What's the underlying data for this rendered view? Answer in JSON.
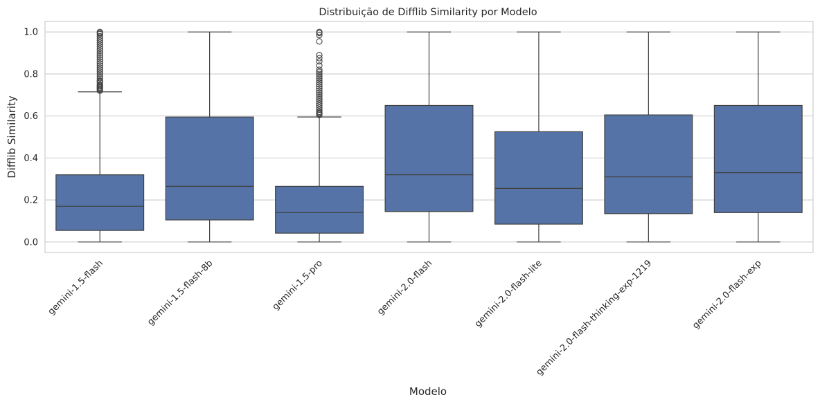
{
  "chart_data": {
    "type": "box",
    "title": "Distribuição de Difflib Similarity por Modelo",
    "xlabel": "Modelo",
    "ylabel": "Difflib Similarity",
    "ylim": [
      -0.05,
      1.05
    ],
    "yticks": [
      "0.0",
      "0.2",
      "0.4",
      "0.6",
      "0.8",
      "1.0"
    ],
    "grid": "horizontal",
    "colors": {
      "box": "#5573a6",
      "line": "#404040",
      "grid": "#cccccc",
      "spine": "#cccccc"
    },
    "categories": [
      "gemini-1.5-flash",
      "gemini-1.5-flash-8b",
      "gemini-1.5-pro",
      "gemini-2.0-flash",
      "gemini-2.0-flash-lite",
      "gemini-2.0-flash-thinking-exp-1219",
      "gemini-2.0-flash-exp"
    ],
    "boxes": [
      {
        "whisker_low": 0.0,
        "q1": 0.055,
        "median": 0.17,
        "q3": 0.32,
        "whisker_high": 0.715,
        "outliers": [
          0.72,
          0.725,
          0.73,
          0.735,
          0.74,
          0.745,
          0.75,
          0.76,
          0.765,
          0.77,
          0.78,
          0.79,
          0.8,
          0.81,
          0.82,
          0.83,
          0.84,
          0.85,
          0.86,
          0.87,
          0.88,
          0.89,
          0.9,
          0.91,
          0.92,
          0.93,
          0.94,
          0.95,
          0.96,
          0.97,
          0.98,
          0.99,
          0.995,
          1.0
        ]
      },
      {
        "whisker_low": 0.0,
        "q1": 0.105,
        "median": 0.265,
        "q3": 0.595,
        "whisker_high": 1.0,
        "outliers": []
      },
      {
        "whisker_low": 0.0,
        "q1": 0.042,
        "median": 0.14,
        "q3": 0.265,
        "whisker_high": 0.595,
        "outliers": [
          0.605,
          0.61,
          0.615,
          0.62,
          0.63,
          0.64,
          0.65,
          0.66,
          0.67,
          0.68,
          0.69,
          0.7,
          0.71,
          0.72,
          0.73,
          0.74,
          0.75,
          0.76,
          0.77,
          0.78,
          0.79,
          0.8,
          0.81,
          0.82,
          0.84,
          0.86,
          0.875,
          0.89,
          0.955,
          0.985,
          0.995,
          1.0
        ]
      },
      {
        "whisker_low": 0.0,
        "q1": 0.145,
        "median": 0.32,
        "q3": 0.65,
        "whisker_high": 1.0,
        "outliers": []
      },
      {
        "whisker_low": 0.0,
        "q1": 0.085,
        "median": 0.255,
        "q3": 0.525,
        "whisker_high": 1.0,
        "outliers": []
      },
      {
        "whisker_low": 0.0,
        "q1": 0.135,
        "median": 0.31,
        "q3": 0.605,
        "whisker_high": 1.0,
        "outliers": []
      },
      {
        "whisker_low": 0.0,
        "q1": 0.14,
        "median": 0.33,
        "q3": 0.65,
        "whisker_high": 1.0,
        "outliers": []
      }
    ]
  }
}
